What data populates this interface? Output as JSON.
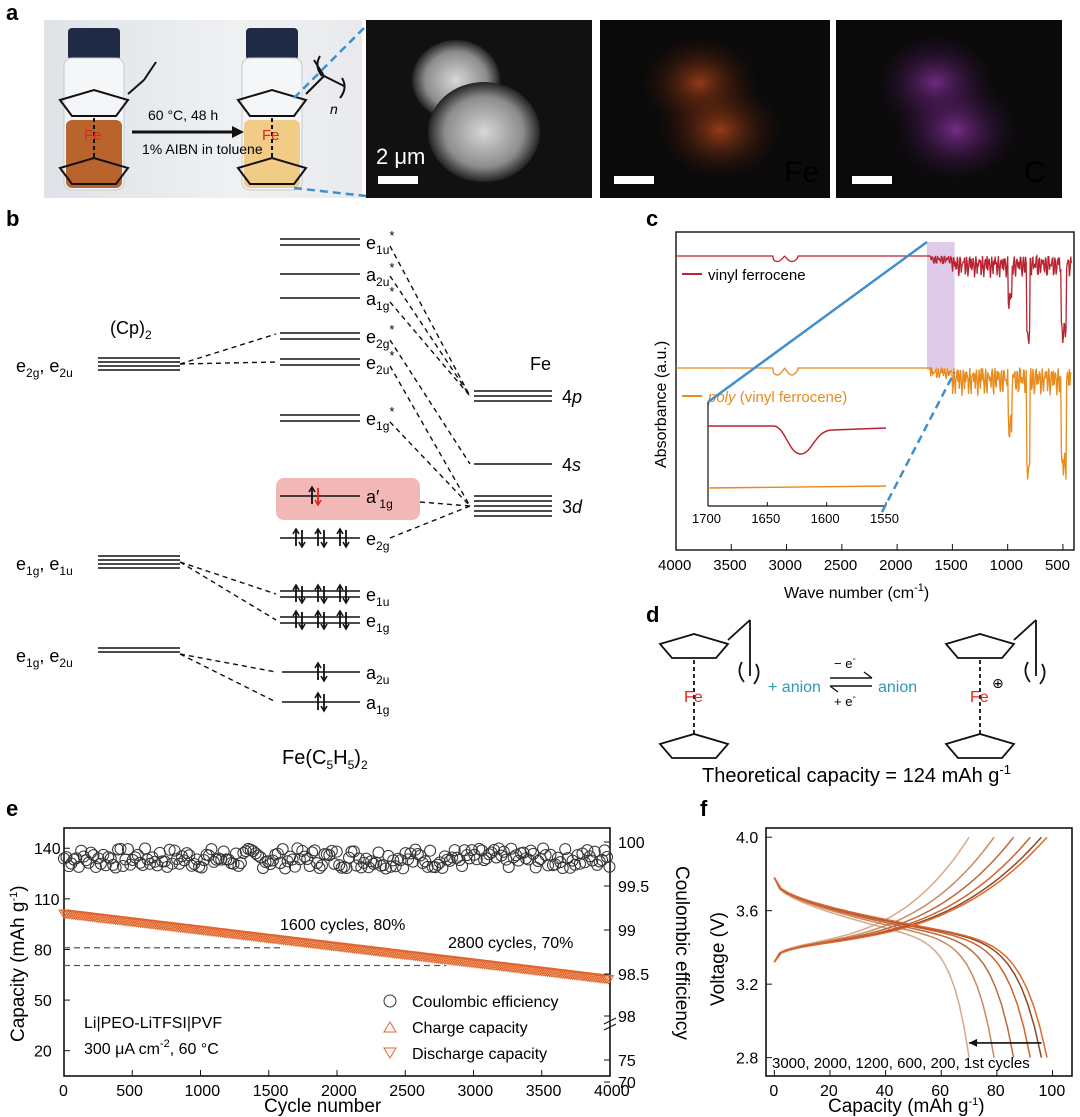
{
  "panel_letters": {
    "a": "a",
    "b": "b",
    "c": "c",
    "d": "d",
    "e": "e",
    "f": "f"
  },
  "panel_a": {
    "condition": "60 °C, 48 h",
    "catalyst": "1% AIBN in toluene",
    "fe_label": "Fe",
    "n_label": "n",
    "scale_bar": "2 μm",
    "map_fe": "Fe",
    "map_c": "C",
    "colors": {
      "fe_map": "#e2672c",
      "c_map": "#9a46b4",
      "fe_atom": "#e0261c"
    }
  },
  "panel_b": {
    "cp_label": "(Cp)",
    "cp_sub": "2",
    "fe_label": "Fe",
    "compound": "Fe(C",
    "compound_sub1": "5",
    "compound_mid": "H",
    "compound_sub2": "5",
    "compound_end": ")",
    "compound_sub3": "2",
    "left_levels": [
      {
        "main1": "e",
        "sub1": "2g",
        "main2": ", e",
        "sub2": "2u"
      },
      {
        "main1": "e",
        "sub1": "1g",
        "main2": ", e",
        "sub2": "1u"
      },
      {
        "main1": "e",
        "sub1": "1g",
        "main2": ", e",
        "sub2": "2u"
      }
    ],
    "mo_levels": [
      {
        "main": "e",
        "sub": "1u",
        "star": "*"
      },
      {
        "main": "a",
        "sub": "2u",
        "star": "*"
      },
      {
        "main": "a",
        "sub": "1g",
        "star": "*"
      },
      {
        "main": "e",
        "sub": "2g",
        "star": "*"
      },
      {
        "main": "e",
        "sub": "2u",
        "star": "*"
      },
      {
        "main": "e",
        "sub": "1g",
        "star": "*"
      },
      {
        "main": "a′",
        "sub": "1g",
        "star": ""
      },
      {
        "main": "e",
        "sub": "2g",
        "star": ""
      },
      {
        "main": "e",
        "sub": "1u",
        "star": ""
      },
      {
        "main": "e",
        "sub": "1g",
        "star": ""
      },
      {
        "main": "a",
        "sub": "2u",
        "star": ""
      },
      {
        "main": "a",
        "sub": "1g",
        "star": ""
      }
    ],
    "fe_levels": [
      {
        "main": "4",
        "italic": "p"
      },
      {
        "main": "4",
        "italic": "s"
      },
      {
        "main": "3",
        "italic": "d"
      }
    ],
    "colors": {
      "highlight": "#f2b8b8",
      "red_electron": "#e0261c"
    }
  },
  "panel_c": {
    "chart_data": {
      "type": "line",
      "xlabel": "Wave number (cm",
      "xlabel_sup": "-1",
      "xlabel_end": ")",
      "ylabel": "Absorbance (a.u.)",
      "x_ticks": [
        "4000",
        "3500",
        "3000",
        "2500",
        "2000",
        "1500",
        "1000",
        "500"
      ],
      "x_tick_values": [
        4000,
        3500,
        3000,
        2500,
        2000,
        1500,
        1000,
        500
      ],
      "xlim": [
        4000,
        400
      ],
      "series": [
        {
          "name": "vinyl ferrocene",
          "color": "#b8232f"
        },
        {
          "name_italic": "poly",
          "name": " (vinyl ferrocene)",
          "color": "#e88a1c"
        }
      ],
      "inset_ticks": [
        "1700",
        "1650",
        "1600",
        "1550"
      ],
      "inset_tick_values": [
        1700,
        1650,
        1600,
        1550
      ],
      "highlight_color": "#c9a6dc",
      "link_color": "#3f8fcf"
    }
  },
  "panel_d": {
    "plus_anion": "+ anion",
    "minus_e": "− e",
    "plus_e": "+ e",
    "e_sup": "-",
    "anion": "anion",
    "fe": "Fe",
    "plus_circle": "⊕",
    "capacity_text": "Theoretical capacity = 124 mAh g",
    "capacity_sup": "-1",
    "anion_color": "#2e9bb5"
  },
  "panel_e": {
    "chart_data": {
      "type": "scatter",
      "xlabel": "Cycle number",
      "ylabel": "Capacity (mAh g",
      "ylabel_sup": "-1",
      "ylabel_end": ")",
      "y2label": "Coulombic efficiency",
      "x_ticks": [
        "0",
        "500",
        "1000",
        "1500",
        "2000",
        "2500",
        "3000",
        "3500",
        "4000"
      ],
      "x_tick_values": [
        0,
        500,
        1000,
        1500,
        2000,
        2500,
        3000,
        3500,
        4000
      ],
      "xlim": [
        0,
        4000
      ],
      "y_ticks": [
        "20",
        "50",
        "80",
        "110",
        "140"
      ],
      "y_tick_values": [
        20,
        50,
        80,
        110,
        140
      ],
      "ylim": [
        5,
        152
      ],
      "y2_ticks": [
        "100",
        "99.5",
        "99",
        "98.5",
        "98",
        "75",
        "70"
      ],
      "annotations": [
        "1600 cycles, 80%",
        "2800 cycles, 70%"
      ],
      "cell_label": "Li|PEO-LiTFSI|PVF",
      "condition_label": "300 μA cm",
      "condition_sup": "-2",
      "condition_end": ", 60 °C",
      "legend": [
        "Coulombic efficiency",
        "Charge capacity",
        "Discharge capacity"
      ],
      "dashed_levels": [
        81,
        70.5
      ],
      "capacity_start": 101,
      "capacity_end": 62,
      "ce_band": [
        129,
        141
      ],
      "ce_mean": 134,
      "colors": {
        "capacity": "#e2672c",
        "ce": "#333333",
        "dashed": "#555555"
      }
    }
  },
  "panel_f": {
    "chart_data": {
      "type": "line",
      "xlabel": "Capacity (mAh g",
      "xlabel_sup": "-1",
      "xlabel_end": ")",
      "ylabel": "Voltage (V)",
      "x_ticks": [
        "0",
        "20",
        "40",
        "60",
        "80",
        "100"
      ],
      "x_tick_values": [
        0,
        20,
        40,
        60,
        80,
        100
      ],
      "xlim": [
        -3,
        107
      ],
      "y_ticks": [
        "2.8",
        "3.2",
        "3.6",
        "4.0"
      ],
      "y_tick_values": [
        2.8,
        3.2,
        3.6,
        4.0
      ],
      "ylim": [
        2.7,
        4.05
      ],
      "annotation": "3000, 2000, 1200, 600, 200, 1st cycles",
      "curves": [
        {
          "cycle": "3000",
          "capacity": 70,
          "color": "#d9a889"
        },
        {
          "cycle": "2000",
          "capacity": 79,
          "color": "#c98960"
        },
        {
          "cycle": "1200",
          "capacity": 86,
          "color": "#b96a40"
        },
        {
          "cycle": "600",
          "capacity": 92,
          "color": "#d0622a"
        },
        {
          "cycle": "200",
          "capacity": 96,
          "color": "#8a4a2a"
        },
        {
          "cycle": "1st",
          "capacity": 98,
          "color": "#e2672c"
        }
      ]
    }
  }
}
